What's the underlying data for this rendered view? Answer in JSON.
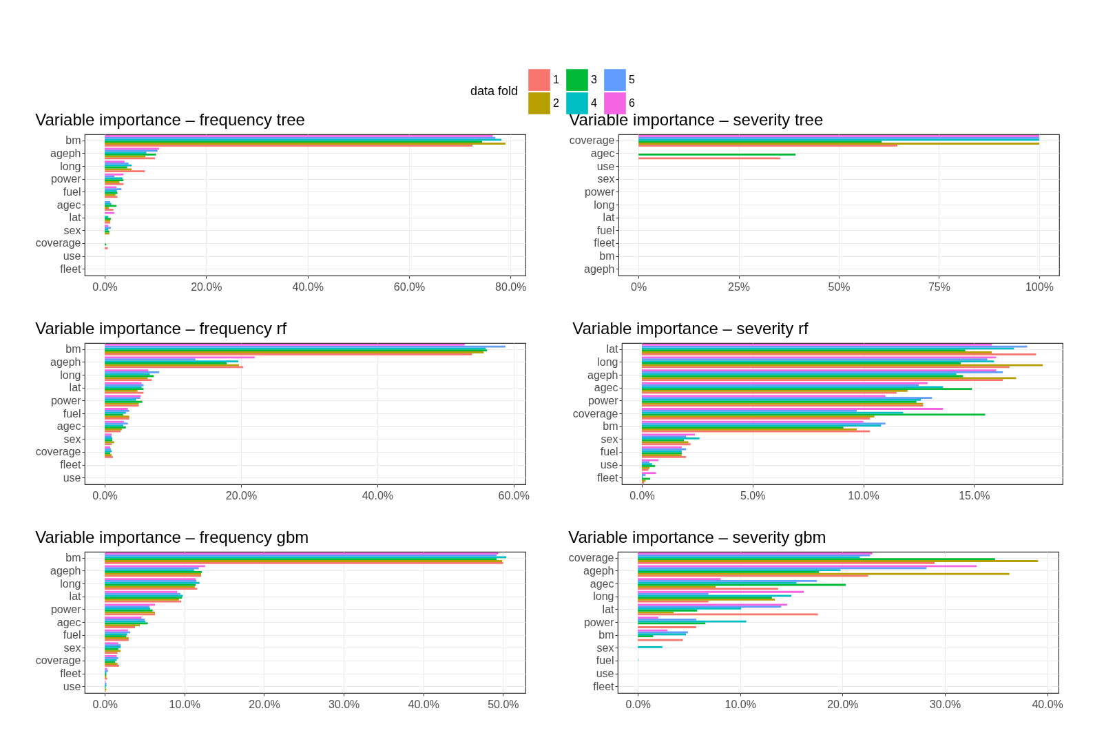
{
  "chart_data": [
    {
      "type": "bar",
      "orientation": "horizontal",
      "title": "Variable importance – frequency tree",
      "legend": "top",
      "legend_title": "data fold",
      "grid": true,
      "categories": [
        "bm",
        "ageph",
        "long",
        "power",
        "fuel",
        "agec",
        "lat",
        "sex",
        "coverage",
        "use",
        "fleet"
      ],
      "xlim": [
        -3.95,
        82.95
      ],
      "xticks": [
        {
          "value": 0,
          "label": "0.0%"
        },
        {
          "value": 20,
          "label": "20.0%"
        },
        {
          "value": 40,
          "label": "40.0%"
        },
        {
          "value": 60,
          "label": "60.0%"
        },
        {
          "value": 80,
          "label": "80.0%"
        }
      ],
      "series": [
        {
          "name": "1",
          "color": "#f8766d",
          "values": [
            72.5,
            9.9,
            7.9,
            3.7,
            2.5,
            1.7,
            1.1,
            0,
            0.6,
            0,
            0
          ]
        },
        {
          "name": "2",
          "color": "#b79f00",
          "values": [
            79.0,
            8.0,
            5.3,
            2.9,
            2.1,
            0.8,
            1.1,
            0.9,
            0,
            0,
            0
          ]
        },
        {
          "name": "3",
          "color": "#00ba38",
          "values": [
            74.4,
            10.1,
            4.4,
            3.7,
            2.5,
            2.3,
            1.2,
            0.9,
            0.3,
            0,
            0
          ]
        },
        {
          "name": "4",
          "color": "#00bfc4",
          "values": [
            78.2,
            8.2,
            5.3,
            3.5,
            2.4,
            1.3,
            0.7,
            0.7,
            0,
            0,
            0
          ]
        },
        {
          "name": "5",
          "color": "#619cff",
          "values": [
            77.0,
            10.4,
            4.7,
            1.9,
            3.3,
            1.1,
            0,
            1.2,
            0,
            0,
            0
          ]
        },
        {
          "name": "6",
          "color": "#f564e3",
          "values": [
            76.5,
            10.7,
            3.9,
            3.7,
            2.3,
            0,
            1.9,
            0.7,
            0,
            0,
            0
          ]
        }
      ]
    },
    {
      "type": "bar",
      "orientation": "horizontal",
      "title": "Variable importance – severity tree",
      "grid": true,
      "categories": [
        "coverage",
        "agec",
        "use",
        "sex",
        "power",
        "long",
        "lat",
        "fuel",
        "fleet",
        "bm",
        "ageph"
      ],
      "xlim": [
        -5,
        105
      ],
      "xticks": [
        {
          "value": 0,
          "label": "0%"
        },
        {
          "value": 25,
          "label": "25%"
        },
        {
          "value": 50,
          "label": "50%"
        },
        {
          "value": 75,
          "label": "75%"
        },
        {
          "value": 100,
          "label": "100%"
        }
      ],
      "series": [
        {
          "name": "1",
          "color": "#f8766d",
          "values": [
            64.6,
            35.4,
            0,
            0,
            0,
            0,
            0,
            0,
            0,
            0,
            0
          ]
        },
        {
          "name": "2",
          "color": "#b79f00",
          "values": [
            100,
            0,
            0,
            0,
            0,
            0,
            0,
            0,
            0,
            0,
            0
          ]
        },
        {
          "name": "3",
          "color": "#00ba38",
          "values": [
            60.7,
            39.2,
            0,
            0,
            0,
            0,
            0,
            0,
            0,
            0,
            0
          ]
        },
        {
          "name": "4",
          "color": "#00bfc4",
          "values": [
            100,
            0,
            0,
            0,
            0,
            0,
            0,
            0,
            0,
            0,
            0
          ]
        },
        {
          "name": "5",
          "color": "#619cff",
          "values": [
            100,
            0,
            0,
            0,
            0,
            0,
            0,
            0,
            0,
            0,
            0
          ]
        },
        {
          "name": "6",
          "color": "#f564e3",
          "values": [
            100,
            0,
            0,
            0,
            0,
            0,
            0,
            0,
            0,
            0,
            0
          ]
        }
      ]
    },
    {
      "type": "bar",
      "orientation": "horizontal",
      "title": "Variable importance – frequency rf",
      "grid": true,
      "categories": [
        "bm",
        "ageph",
        "long",
        "lat",
        "power",
        "fuel",
        "agec",
        "sex",
        "coverage",
        "fleet",
        "use"
      ],
      "xlim": [
        -2.94,
        61.74
      ],
      "xticks": [
        {
          "value": 0,
          "label": "0.0%"
        },
        {
          "value": 20,
          "label": "20.0%"
        },
        {
          "value": 40,
          "label": "40.0%"
        },
        {
          "value": 60,
          "label": "60.0%"
        }
      ],
      "series": [
        {
          "name": "1",
          "color": "#f8766d",
          "values": [
            53.9,
            20.3,
            6.9,
            5.7,
            5.0,
            3.6,
            2.3,
            1.0,
            1.2,
            0,
            0
          ]
        },
        {
          "name": "2",
          "color": "#b79f00",
          "values": [
            55.6,
            19.7,
            6.3,
            4.8,
            5.0,
            3.6,
            2.5,
            1.4,
            1.0,
            0,
            0
          ]
        },
        {
          "name": "3",
          "color": "#00ba38",
          "values": [
            56.1,
            17.9,
            7.2,
            5.7,
            5.5,
            2.7,
            3.1,
            1.1,
            0.8,
            0,
            0
          ]
        },
        {
          "name": "4",
          "color": "#00bfc4",
          "values": [
            55.9,
            19.6,
            6.6,
            5.4,
            4.6,
            3.1,
            2.7,
            1.1,
            1.0,
            0,
            0
          ]
        },
        {
          "name": "5",
          "color": "#619cff",
          "values": [
            58.8,
            13.3,
            8.0,
            5.7,
            5.2,
            3.6,
            3.4,
            1.0,
            0.9,
            0,
            0
          ]
        },
        {
          "name": "6",
          "color": "#f564e3",
          "values": [
            52.8,
            22.0,
            6.4,
            5.4,
            5.3,
            3.4,
            2.8,
            1.0,
            0.8,
            0,
            0
          ]
        }
      ]
    },
    {
      "type": "bar",
      "orientation": "horizontal",
      "title": "Variable importance – severity rf",
      "grid": true,
      "categories": [
        "lat",
        "long",
        "ageph",
        "agec",
        "power",
        "coverage",
        "bm",
        "sex",
        "fuel",
        "use",
        "fleet"
      ],
      "xlim": [
        -0.9,
        19.0
      ],
      "xticks": [
        {
          "value": 0,
          "label": "0.0%"
        },
        {
          "value": 5,
          "label": "5.0%"
        },
        {
          "value": 10,
          "label": "10.0%"
        },
        {
          "value": 15,
          "label": "15.0%"
        }
      ],
      "series": [
        {
          "name": "1",
          "color": "#f8766d",
          "values": [
            17.8,
            16.6,
            16.3,
            11.5,
            12.7,
            10.3,
            10.3,
            2.2,
            2.0,
            0.3,
            0.1
          ]
        },
        {
          "name": "2",
          "color": "#b79f00",
          "values": [
            15.8,
            18.1,
            16.9,
            12.0,
            12.7,
            10.5,
            9.7,
            2.1,
            1.8,
            0.35,
            0.17
          ]
        },
        {
          "name": "3",
          "color": "#00ba38",
          "values": [
            14.6,
            14.4,
            14.5,
            14.9,
            12.4,
            15.5,
            9.1,
            1.9,
            1.8,
            0.6,
            0.38
          ]
        },
        {
          "name": "4",
          "color": "#00bfc4",
          "values": [
            16.8,
            15.9,
            14.2,
            13.6,
            12.6,
            11.8,
            10.8,
            2.6,
            1.8,
            0.46,
            0.05
          ]
        },
        {
          "name": "5",
          "color": "#619cff",
          "values": [
            17.4,
            15.6,
            16.3,
            12.5,
            13.1,
            9.7,
            11.0,
            2.0,
            2.0,
            0.34,
            0.17
          ]
        },
        {
          "name": "6",
          "color": "#f564e3",
          "values": [
            15.8,
            16.0,
            16.0,
            12.9,
            11.0,
            13.6,
            10.0,
            2.4,
            1.8,
            0.75,
            0.64
          ]
        }
      ]
    },
    {
      "type": "bar",
      "orientation": "horizontal",
      "title": "Variable importance – frequency gbm",
      "grid": true,
      "categories": [
        "bm",
        "ageph",
        "long",
        "lat",
        "power",
        "agec",
        "fuel",
        "sex",
        "coverage",
        "fleet",
        "use"
      ],
      "xlim": [
        -2.52,
        52.82
      ],
      "xticks": [
        {
          "value": 0,
          "label": "0.0%"
        },
        {
          "value": 10,
          "label": "10.0%"
        },
        {
          "value": 20,
          "label": "20.0%"
        },
        {
          "value": 30,
          "label": "30.0%"
        },
        {
          "value": 40,
          "label": "40.0%"
        },
        {
          "value": 50,
          "label": "50.0%"
        }
      ],
      "series": [
        {
          "name": "1",
          "color": "#f8766d",
          "values": [
            50.0,
            12.1,
            11.6,
            9.6,
            6.3,
            3.8,
            3.0,
            1.6,
            1.8,
            0.3,
            0.1
          ]
        },
        {
          "name": "2",
          "color": "#b79f00",
          "values": [
            49.9,
            12.1,
            11.3,
            9.3,
            6.3,
            4.4,
            3.0,
            2.0,
            1.6,
            0.2,
            0.2
          ]
        },
        {
          "name": "3",
          "color": "#00ba38",
          "values": [
            49.2,
            12.2,
            11.4,
            9.7,
            6.0,
            5.4,
            2.7,
            1.7,
            1.3,
            0.2,
            0.1
          ]
        },
        {
          "name": "4",
          "color": "#00bfc4",
          "values": [
            50.4,
            11.2,
            11.9,
            9.8,
            5.7,
            5.1,
            2.8,
            2.0,
            1.5,
            0.2,
            0.2
          ]
        },
        {
          "name": "5",
          "color": "#619cff",
          "values": [
            49.2,
            11.8,
            11.5,
            9.5,
            5.6,
            5.0,
            3.2,
            2.0,
            1.7,
            0.4,
            0.2
          ]
        },
        {
          "name": "6",
          "color": "#f564e3",
          "values": [
            49.4,
            12.6,
            11.4,
            9.1,
            6.3,
            4.6,
            2.9,
            1.7,
            1.5,
            0.3,
            0.1
          ]
        }
      ]
    },
    {
      "type": "bar",
      "orientation": "horizontal",
      "title": "Variable importance – severity gbm",
      "grid": true,
      "categories": [
        "coverage",
        "ageph",
        "agec",
        "long",
        "lat",
        "power",
        "bm",
        "sex",
        "fuel",
        "use",
        "fleet"
      ],
      "xlim": [
        -1.96,
        41.1
      ],
      "xticks": [
        {
          "value": 0,
          "label": "0.0%"
        },
        {
          "value": 10,
          "label": "10.0%"
        },
        {
          "value": 20,
          "label": "20.0%"
        },
        {
          "value": 30,
          "label": "30.0%"
        },
        {
          "value": 40,
          "label": "40.0%"
        }
      ],
      "series": [
        {
          "name": "1",
          "color": "#f8766d",
          "values": [
            29.0,
            22.5,
            13.7,
            6.9,
            17.6,
            5.7,
            4.4,
            0,
            0,
            0,
            0
          ]
        },
        {
          "name": "2",
          "color": "#b79f00",
          "values": [
            39.1,
            36.3,
            7.6,
            13.4,
            3.5,
            0,
            0,
            0,
            0,
            0,
            0
          ]
        },
        {
          "name": "3",
          "color": "#00ba38",
          "values": [
            34.9,
            17.7,
            20.3,
            13.1,
            5.8,
            6.6,
            1.5,
            0,
            0,
            0,
            0
          ]
        },
        {
          "name": "4",
          "color": "#00bfc4",
          "values": [
            21.7,
            19.8,
            15.5,
            15.0,
            10.1,
            10.6,
            4.7,
            2.4,
            0.05,
            0,
            0
          ]
        },
        {
          "name": "5",
          "color": "#619cff",
          "values": [
            22.7,
            28.2,
            17.5,
            6.9,
            14.0,
            5.7,
            4.9,
            0,
            0,
            0,
            0
          ]
        },
        {
          "name": "6",
          "color": "#f564e3",
          "values": [
            22.9,
            33.1,
            8.1,
            16.2,
            14.6,
            2.0,
            2.9,
            0,
            0,
            0,
            0
          ]
        }
      ]
    }
  ]
}
